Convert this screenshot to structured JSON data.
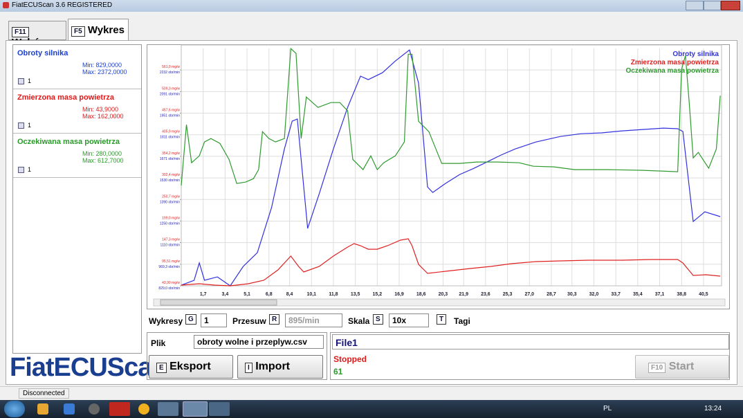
{
  "window": {
    "title": "FiatECUScan 3.6 REGISTERED"
  },
  "tabs": [
    {
      "key": "F11",
      "label": "Wybór"
    },
    {
      "key": "F5",
      "label": "Wykres"
    }
  ],
  "channels": [
    {
      "name": "Obroty silnika",
      "min": "Min: 829,0000",
      "max": "Max: 2372,0000",
      "checkbox": "1",
      "color": "#1a3fd0"
    },
    {
      "name": "Zmierzona masa powietrza",
      "min": "Min: 43,9000",
      "max": "Max: 162,0000",
      "checkbox": "1",
      "color": "#e01818"
    },
    {
      "name": "Oczekiwana masa powietrza",
      "min": "Min: 280,0000",
      "max": "Max: 612,7000",
      "checkbox": "1",
      "color": "#2a9a2a"
    }
  ],
  "chart_data": {
    "type": "line",
    "grid": true,
    "legend": "top-right",
    "xlim": [
      0,
      41.9
    ],
    "xticks": [
      {
        "value": 1.7,
        "label": "1,7"
      },
      {
        "value": 3.4,
        "label": "3,4"
      },
      {
        "value": 5.1,
        "label": "5,1"
      },
      {
        "value": 6.8,
        "label": "6,8"
      },
      {
        "value": 8.4,
        "label": "8,4"
      },
      {
        "value": 10.1,
        "label": "10,1"
      },
      {
        "value": 11.8,
        "label": "11,8"
      },
      {
        "value": 13.5,
        "label": "13,5"
      },
      {
        "value": 15.2,
        "label": "15,2"
      },
      {
        "value": 16.9,
        "label": "16,9"
      },
      {
        "value": 18.6,
        "label": "18,6"
      },
      {
        "value": 20.3,
        "label": "20,3"
      },
      {
        "value": 21.9,
        "label": "21,9"
      },
      {
        "value": 23.6,
        "label": "23,6"
      },
      {
        "value": 25.3,
        "label": "25,3"
      },
      {
        "value": 27.0,
        "label": "27,0"
      },
      {
        "value": 28.7,
        "label": "28,7"
      },
      {
        "value": 30.3,
        "label": "30,3"
      },
      {
        "value": 32.0,
        "label": "32,0"
      },
      {
        "value": 33.7,
        "label": "33,7"
      },
      {
        "value": 35.4,
        "label": "35,4"
      },
      {
        "value": 37.1,
        "label": "37,1"
      },
      {
        "value": 38.8,
        "label": "38,8"
      },
      {
        "value": 40.5,
        "label": "40,5"
      }
    ],
    "ylim": [
      43.9,
      612.7
    ],
    "yticks": [
      {
        "value": 43.9,
        "label": "43,90 mg/w"
      },
      {
        "value": 95.51,
        "label": "95,51 mg/w"
      },
      {
        "value": 147.3,
        "label": "147,3 mg/w"
      },
      {
        "value": 199.0,
        "label": "199,0 mg/w"
      },
      {
        "value": 250.7,
        "label": "250,7 mg/w"
      },
      {
        "value": 302.4,
        "label": "302,4 mg/w"
      },
      {
        "value": 354.2,
        "label": "354,2 mg/w"
      },
      {
        "value": 405.9,
        "label": "405,9 mg/w"
      },
      {
        "value": 457.6,
        "label": "457,6 mg/w"
      },
      {
        "value": 509.3,
        "label": "509,3 mg/w"
      },
      {
        "value": 561.0,
        "label": "561,0 mg/w"
      }
    ],
    "y2lim": [
      829,
      2372
    ],
    "y2ticks": [
      {
        "value": 829.0,
        "label": "829,0 obr/min"
      },
      {
        "value": 969.3,
        "label": "969,3 obr/min"
      },
      {
        "value": 1110,
        "label": "1110 obr/min"
      },
      {
        "value": 1250,
        "label": "1250 obr/min"
      },
      {
        "value": 1390,
        "label": "1390 obr/min"
      },
      {
        "value": 1530,
        "label": "1530 obr/min"
      },
      {
        "value": 1671,
        "label": "1671 obr/min"
      },
      {
        "value": 1811,
        "label": "1811 obr/min"
      },
      {
        "value": 1951,
        "label": "1951 obr/min"
      },
      {
        "value": 2091,
        "label": "2091 obr/min"
      },
      {
        "value": 2232,
        "label": "2232 obr/min"
      }
    ],
    "series": [
      {
        "name": "Obroty silnika",
        "color": "#3030e0",
        "axis": "y2",
        "x": [
          0,
          1.0,
          1.4,
          1.8,
          2.8,
          3.8,
          4.8,
          5.9,
          7.0,
          8.0,
          8.6,
          9.0,
          9.8,
          10.7,
          11.8,
          12.9,
          13.9,
          14.5,
          15.6,
          16.6,
          17.7,
          18.4,
          19.1,
          19.5,
          20.5,
          21.6,
          22.7,
          23.8,
          24.8,
          25.9,
          27.5,
          29.4,
          31.0,
          32.6,
          34.2,
          35.8,
          37.4,
          38.5,
          38.9,
          39.7,
          40.6,
          41.8
        ],
        "values": [
          833,
          865,
          978,
          865,
          887,
          829,
          955,
          1045,
          1337,
          1719,
          1899,
          1913,
          1202,
          1427,
          1719,
          1989,
          2192,
          2169,
          2214,
          2290,
          2362,
          2147,
          1472,
          1436,
          1495,
          1553,
          1593,
          1638,
          1679,
          1719,
          1764,
          1800,
          1818,
          1823,
          1836,
          1845,
          1854,
          1850,
          1832,
          1247,
          1310,
          1279
        ]
      },
      {
        "name": "Zmierzona masa powietrza",
        "color": "#e02020",
        "x": [
          0,
          1.4,
          2.6,
          3.8,
          5.2,
          6.4,
          7.5,
          8.5,
          9.1,
          9.5,
          10.7,
          11.8,
          12.9,
          13.4,
          13.9,
          14.5,
          15.2,
          16.0,
          17.0,
          17.6,
          17.9,
          18.4,
          19.1,
          20.5,
          22.4,
          24.0,
          25.6,
          27.5,
          29.4,
          31.6,
          34.2,
          36.4,
          38.5,
          38.9,
          39.7,
          40.7,
          41.8
        ],
        "values": [
          45.6,
          48.9,
          45.6,
          43.9,
          48.9,
          57.2,
          82.0,
          115.2,
          90.3,
          77.0,
          90.3,
          115.2,
          136.7,
          145.0,
          140.0,
          131.7,
          131.7,
          140.0,
          153.3,
          156.6,
          140.0,
          95.3,
          73.7,
          78.7,
          85.3,
          90.3,
          96.9,
          101.9,
          103.6,
          105.2,
          105.2,
          106.9,
          106.9,
          98.6,
          68.8,
          70.4,
          67.1
        ]
      },
      {
        "name": "Oczekiwana masa powietrza",
        "color": "#2e9a2e",
        "x": [
          0,
          0.4,
          0.8,
          1.4,
          1.8,
          2.3,
          3.0,
          3.7,
          4.3,
          5.0,
          5.6,
          6.0,
          6.3,
          6.8,
          7.3,
          8.0,
          8.5,
          8.9,
          9.3,
          9.7,
          10.6,
          11.6,
          12.3,
          12.9,
          13.3,
          14.1,
          14.7,
          15.2,
          15.7,
          16.6,
          17.3,
          17.6,
          17.9,
          18.4,
          19.2,
          20.2,
          21.6,
          22.9,
          24.6,
          26.2,
          27.3,
          28.9,
          30.5,
          33.1,
          35.8,
          38.5,
          38.8,
          39.1,
          39.4,
          39.7,
          40.1,
          40.9,
          41.5,
          41.8
        ],
        "values": [
          284.2,
          430.0,
          338.8,
          355.4,
          388.6,
          396.8,
          385.2,
          347.1,
          289.1,
          292.4,
          300.7,
          322.3,
          413.4,
          396.8,
          388.6,
          396.8,
          612.3,
          600.7,
          396.8,
          496.3,
          471.4,
          483.0,
          483.0,
          463.1,
          347.1,
          322.3,
          355.4,
          322.3,
          338.8,
          355.4,
          388.6,
          599.0,
          599.0,
          438.3,
          413.4,
          337.2,
          337.2,
          340.5,
          340.5,
          338.8,
          330.5,
          328.9,
          322.3,
          322.3,
          320.6,
          317.3,
          562.5,
          595.7,
          479.7,
          350.4,
          363.7,
          325.6,
          372.0,
          499.6
        ]
      }
    ]
  },
  "controls": {
    "wykresy_label": "Wykresy",
    "wykresy_key": "G",
    "wykresy_value": "1",
    "przesuw_label": "Przesuw",
    "przesuw_key": "R",
    "przesuw_value": "895/min",
    "skala_label": "Skala",
    "skala_key": "S",
    "skala_value": "10x",
    "tagi_key": "T",
    "tagi_label": "Tagi"
  },
  "file": {
    "label": "Plik",
    "value": "obroty wolne i przeplyw.csv",
    "export_key": "E",
    "export": "Eksport",
    "import_key": "I",
    "import": "Import"
  },
  "log": {
    "name": "File1",
    "status": "Stopped",
    "count": "61",
    "start_key": "F10",
    "start": "Start"
  },
  "logo": "FiatECUScan",
  "status_bar": "Disconnected",
  "taskbar": {
    "language": "PL",
    "time": "13:24"
  }
}
